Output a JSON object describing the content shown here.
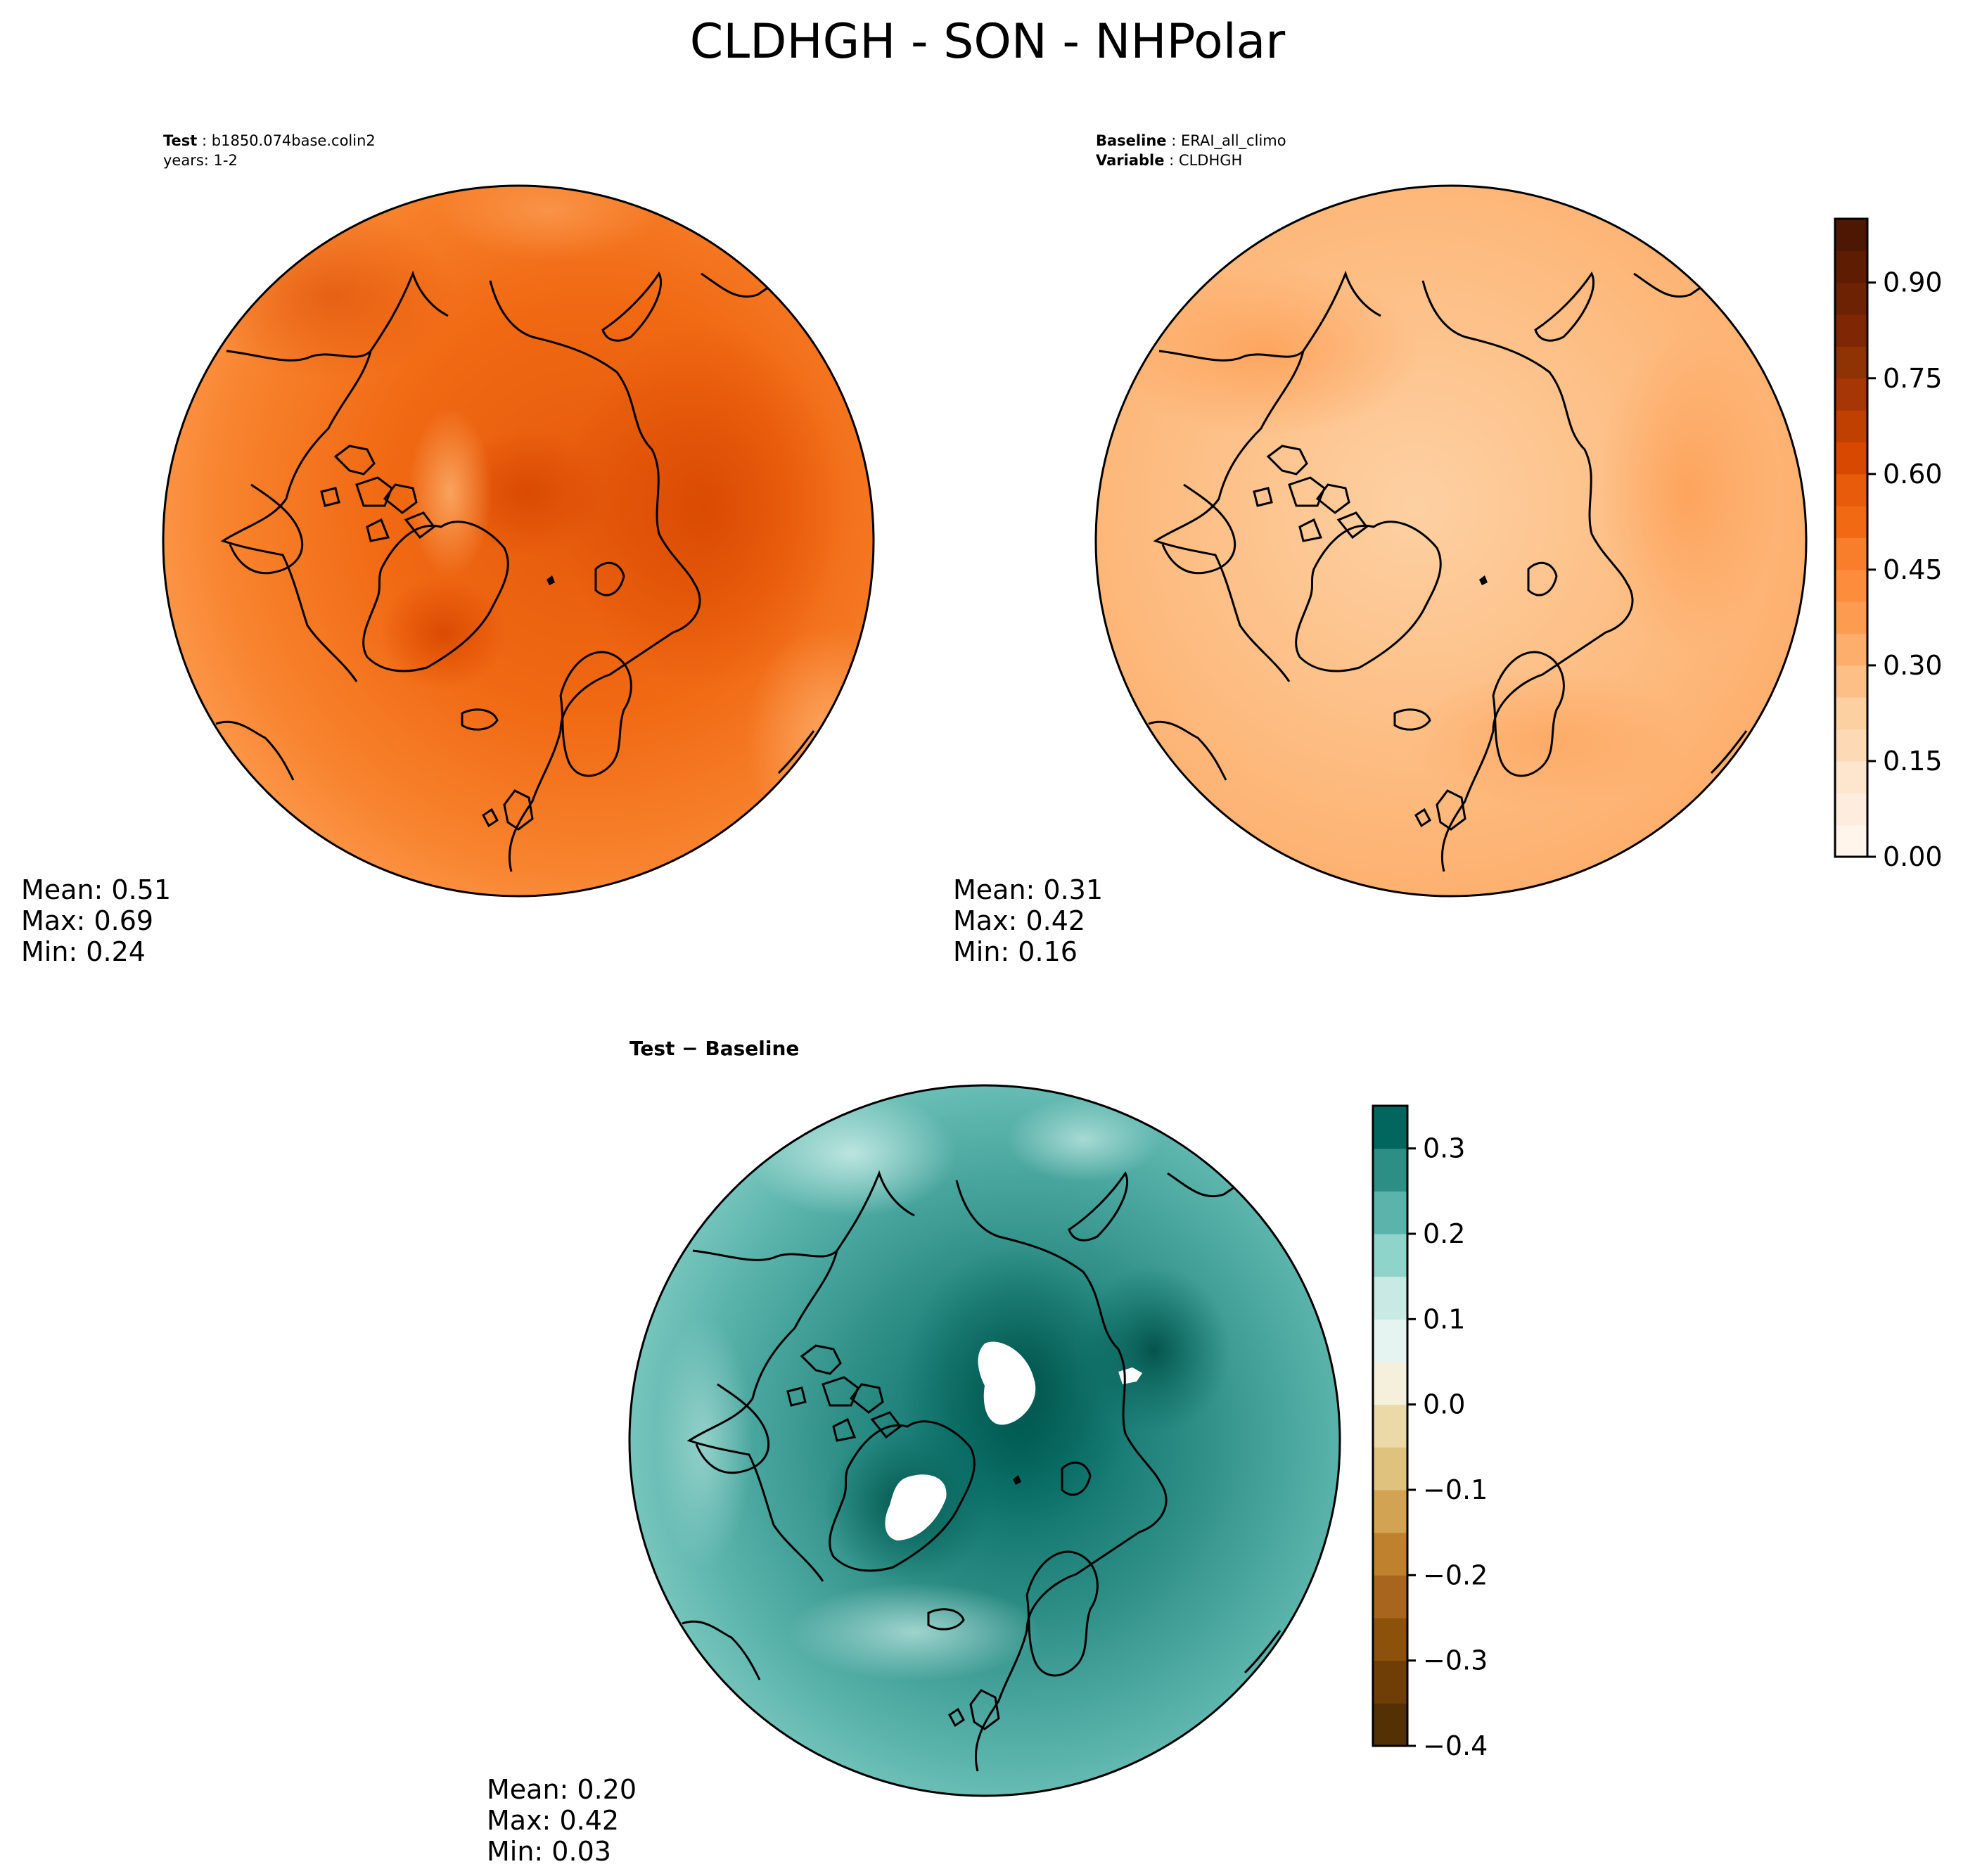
{
  "title": "CLDHGH - SON - NHPolar",
  "colors": {
    "outline": "#000000",
    "land": "#000000"
  },
  "panels": {
    "test": {
      "label_bold": "Test",
      "label_value": "b1850.074base.colin2",
      "label_line2": "years: 1-2",
      "stats": [
        "Mean:  0.51",
        "Max:  0.69",
        "Min:  0.24"
      ]
    },
    "baseline": {
      "label_bold": "Baseline",
      "label_value": "ERAI_all_climo",
      "label2_bold": "Variable",
      "label2_value": "CLDHGH",
      "stats": [
        "Mean:  0.31",
        "Max:  0.42",
        "Min:  0.16"
      ]
    },
    "diff": {
      "label_bold": "Test − Baseline",
      "stats": [
        "Mean:  0.20",
        "Max:  0.42",
        "Min:  0.03"
      ]
    }
  },
  "chart_data": [
    {
      "type": "heatmap",
      "name": "Test",
      "projection": "north-polar-stereographic",
      "field": "CLDHGH",
      "mean": 0.51,
      "max": 0.69,
      "min": 0.24,
      "colormap": "Oranges",
      "levels": [
        0.0,
        0.05,
        0.1,
        0.15,
        0.2,
        0.25,
        0.3,
        0.35,
        0.4,
        0.45,
        0.5,
        0.55,
        0.6,
        0.65,
        0.7,
        0.75,
        0.8,
        0.85,
        0.9,
        0.95,
        1.0
      ],
      "colorbar_ticks": [
        "0.00",
        "0.15",
        "0.30",
        "0.45",
        "0.60",
        "0.75",
        "0.90"
      ]
    },
    {
      "type": "heatmap",
      "name": "Baseline",
      "projection": "north-polar-stereographic",
      "field": "CLDHGH",
      "mean": 0.31,
      "max": 0.42,
      "min": 0.16,
      "colormap": "Oranges",
      "levels": [
        0.0,
        0.05,
        0.1,
        0.15,
        0.2,
        0.25,
        0.3,
        0.35,
        0.4,
        0.45,
        0.5,
        0.55,
        0.6,
        0.65,
        0.7,
        0.75,
        0.8,
        0.85,
        0.9,
        0.95,
        1.0
      ],
      "colorbar_ticks": [
        "0.00",
        "0.15",
        "0.30",
        "0.45",
        "0.60",
        "0.75",
        "0.90"
      ]
    },
    {
      "type": "heatmap",
      "name": "Test − Baseline",
      "projection": "north-polar-stereographic",
      "field": "CLDHGH",
      "mean": 0.2,
      "max": 0.42,
      "min": 0.03,
      "colormap": "BrBG",
      "levels": [
        -0.4,
        -0.35,
        -0.3,
        -0.25,
        -0.2,
        -0.15,
        -0.1,
        -0.05,
        0.0,
        0.05,
        0.1,
        0.15,
        0.2,
        0.25,
        0.3,
        0.35
      ],
      "colorbar_ticks": [
        "−0.4",
        "−0.3",
        "−0.2",
        "−0.1",
        "0.0",
        "0.1",
        "0.2",
        "0.3"
      ]
    }
  ],
  "colorbars": {
    "oranges_colors": [
      "#fff5eb",
      "#feedde",
      "#fee6ce",
      "#fdd9b5",
      "#fdd0a2",
      "#fdbf86",
      "#fdae6b",
      "#fd9c51",
      "#fd8d3c",
      "#f87e2b",
      "#f16913",
      "#e75b0b",
      "#d94801",
      "#c04001",
      "#a63603",
      "#8f3204",
      "#7f2704",
      "#6e2204",
      "#5e1d03",
      "#4d1803"
    ],
    "brbg_colors": [
      "#543005",
      "#6f3d06",
      "#8c510a",
      "#a7651d",
      "#bf812d",
      "#d1a352",
      "#dfc27d",
      "#ecd9a8",
      "#f5f0dc",
      "#e5f3f1",
      "#c7eae5",
      "#8fd4ca",
      "#5ab4ac",
      "#2d8e86",
      "#01665e",
      "#014e45"
    ]
  }
}
